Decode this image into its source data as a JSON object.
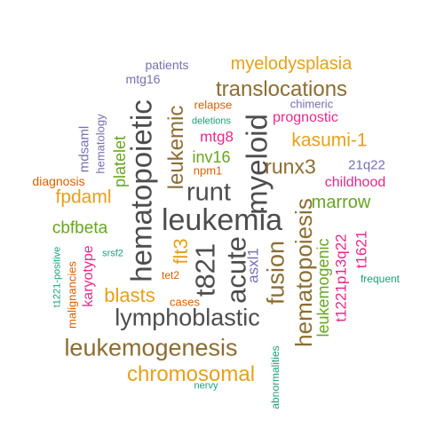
{
  "words": [
    {
      "text": "leukemia",
      "color": "#4d4d4d",
      "rotated": false
    },
    {
      "text": "hematopoietic",
      "color": "#4d4d4d",
      "rotated": true
    },
    {
      "text": "myeloid",
      "color": "#4d4d4d",
      "rotated": true
    },
    {
      "text": "t821",
      "color": "#4d4d4d",
      "rotated": true
    },
    {
      "text": "acute",
      "color": "#4d4d4d",
      "rotated": true
    },
    {
      "text": "runt",
      "color": "#4d4d4d",
      "rotated": false
    },
    {
      "text": "lymphoblastic",
      "color": "#4d4d4d",
      "rotated": false
    },
    {
      "text": "leukemogenesis",
      "color": "#8c6d31",
      "rotated": false
    },
    {
      "text": "translocations",
      "color": "#8c6d31",
      "rotated": false
    },
    {
      "text": "fusion",
      "color": "#8c6d31",
      "rotated": true
    },
    {
      "text": "hematopoiesis",
      "color": "#8c6d31",
      "rotated": true
    },
    {
      "text": "leukemic",
      "color": "#8c6d31",
      "rotated": true
    },
    {
      "text": "runx3",
      "color": "#8c6d31",
      "rotated": false
    },
    {
      "text": "chromosomal",
      "color": "#e6a118",
      "rotated": false
    },
    {
      "text": "myelodysplasia",
      "color": "#e6a118",
      "rotated": false
    },
    {
      "text": "kasumi-1",
      "color": "#e6a118",
      "rotated": false
    },
    {
      "text": "blasts",
      "color": "#e6a118",
      "rotated": false
    },
    {
      "text": "fpdaml",
      "color": "#e6a118",
      "rotated": false
    },
    {
      "text": "flt3",
      "color": "#e6a118",
      "rotated": true
    },
    {
      "text": "marrow",
      "color": "#66a61e",
      "rotated": false
    },
    {
      "text": "inv16",
      "color": "#66a61e",
      "rotated": false
    },
    {
      "text": "cbfbeta",
      "color": "#66a61e",
      "rotated": false
    },
    {
      "text": "platelet",
      "color": "#66a61e",
      "rotated": true
    },
    {
      "text": "leukemogenic",
      "color": "#66a61e",
      "rotated": true
    },
    {
      "text": "prognostic",
      "color": "#e7298a",
      "rotated": false
    },
    {
      "text": "mtg8",
      "color": "#e7298a",
      "rotated": false
    },
    {
      "text": "childhood",
      "color": "#e7298a",
      "rotated": false
    },
    {
      "text": "t1221p13q22",
      "color": "#e7298a",
      "rotated": true
    },
    {
      "text": "t1621",
      "color": "#e7298a",
      "rotated": true
    },
    {
      "text": "karyotype",
      "color": "#e7298a",
      "rotated": true
    },
    {
      "text": "asxl1",
      "color": "#7570b3",
      "rotated": true
    },
    {
      "text": "21q22",
      "color": "#7570b3",
      "rotated": false
    },
    {
      "text": "chimeric",
      "color": "#7570b3",
      "rotated": false
    },
    {
      "text": "patients",
      "color": "#7570b3",
      "rotated": false
    },
    {
      "text": "mtg16",
      "color": "#7570b3",
      "rotated": false
    },
    {
      "text": "mdsaml",
      "color": "#7570b3",
      "rotated": true
    },
    {
      "text": "hematology",
      "color": "#7570b3",
      "rotated": true
    },
    {
      "text": "relapse",
      "color": "#d95f02",
      "rotated": false
    },
    {
      "text": "diagnosis",
      "color": "#d95f02",
      "rotated": false
    },
    {
      "text": "npm1",
      "color": "#d95f02",
      "rotated": false
    },
    {
      "text": "tet2",
      "color": "#d95f02",
      "rotated": false
    },
    {
      "text": "cases",
      "color": "#d95f02",
      "rotated": false
    },
    {
      "text": "malignancies",
      "color": "#d95f02",
      "rotated": true
    },
    {
      "text": "deletions",
      "color": "#1b9e77",
      "rotated": false
    },
    {
      "text": "frequent",
      "color": "#1b9e77",
      "rotated": false
    },
    {
      "text": "srsf2",
      "color": "#1b9e77",
      "rotated": false
    },
    {
      "text": "t1221-positive",
      "color": "#1b9e77",
      "rotated": true
    },
    {
      "text": "abnormalities",
      "color": "#1b9e77",
      "rotated": true
    },
    {
      "text": "nervy",
      "color": "#1b9e77",
      "rotated": false
    }
  ]
}
